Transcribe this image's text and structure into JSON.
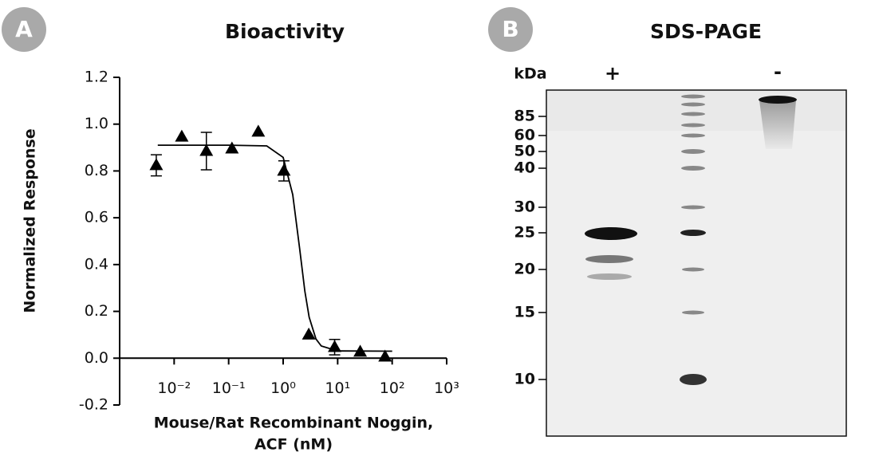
{
  "panels": [
    "A",
    "B"
  ],
  "chart_data": {
    "type": "scatter",
    "title": "Bioactivity",
    "y_label": "Normalized Response",
    "x_label": [
      "Mouse/Rat Recombinant Noggin,",
      "ACF (nM)"
    ],
    "log_x": true,
    "color": "#000000",
    "x": [
      0.0047,
      0.0138,
      0.039,
      0.115,
      0.35,
      1.03,
      2.95,
      8.8,
      25.9,
      74
    ],
    "values": [
      0.824,
      0.946,
      0.885,
      0.895,
      0.967,
      0.8,
      0.1,
      0.047,
      0.027,
      0.006
    ],
    "errors": [
      0.045,
      null,
      0.08,
      null,
      null,
      0.043,
      null,
      0.033,
      null,
      null
    ],
    "fit": {
      "x": [
        0.005,
        0.1,
        0.5,
        1,
        1.5,
        2,
        2.5,
        3,
        4,
        5,
        10,
        100
      ],
      "y": [
        0.91,
        0.91,
        0.907,
        0.858,
        0.699,
        0.47,
        0.286,
        0.175,
        0.082,
        0.052,
        0.031,
        0.03
      ]
    },
    "xlim": [
      0.001,
      1000
    ],
    "xticks": [
      {
        "value": 0.01,
        "label": "10⁻²"
      },
      {
        "value": 0.1,
        "label": "10⁻¹"
      },
      {
        "value": 1,
        "label": "10⁰"
      },
      {
        "value": 10,
        "label": "10¹"
      },
      {
        "value": 100,
        "label": "10²"
      },
      {
        "value": 1000,
        "label": "10³"
      }
    ],
    "ylim": [
      -0.2,
      1.2
    ],
    "yticks": [
      -0.2,
      {
        "value": 0,
        "label": "0.0"
      },
      0.2,
      0.4,
      0.6,
      0.8,
      {
        "value": 1,
        "label": "1.0"
      },
      1.2
    ]
  },
  "gel": {
    "title": "SDS-PAGE",
    "unit": "kDa",
    "lanes": [
      "+",
      "-"
    ],
    "markers": [
      85,
      60,
      50,
      40,
      30,
      25,
      20,
      15,
      10
    ]
  }
}
